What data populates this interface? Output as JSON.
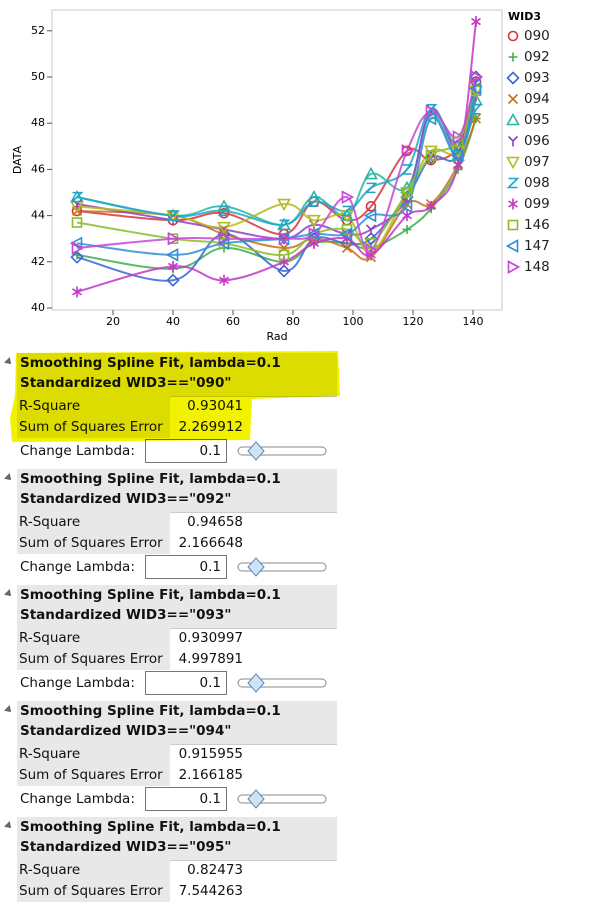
{
  "chart_data": {
    "type": "scatter",
    "x_label": "Rad",
    "y_label": "DATA",
    "xlim": [
      0,
      150
    ],
    "xticks": [
      20,
      40,
      60,
      80,
      100,
      120,
      140
    ],
    "ylim": [
      40,
      52.9
    ],
    "yticks": [
      40,
      42,
      44,
      46,
      48,
      50,
      52
    ],
    "legend_title": "WID3",
    "legend": "right",
    "x": [
      8,
      40,
      57,
      77,
      87,
      98,
      106,
      118,
      126,
      135,
      141
    ],
    "series": [
      {
        "name": "090",
        "color": "#d4373c",
        "marker": "circle",
        "values": [
          44.2,
          43.8,
          44.1,
          43.2,
          44.6,
          43.8,
          44.4,
          46.8,
          46.4,
          47.0,
          49.8
        ]
      },
      {
        "name": "092",
        "color": "#3cb04a",
        "marker": "plus",
        "values": [
          42.3,
          41.7,
          42.6,
          42.0,
          42.8,
          42.8,
          42.6,
          43.4,
          44.3,
          46.0,
          48.2
        ]
      },
      {
        "name": "093",
        "color": "#3a66d4",
        "marker": "diamond",
        "values": [
          42.2,
          41.2,
          43.2,
          41.6,
          43.0,
          42.8,
          43.0,
          44.8,
          46.5,
          46.6,
          50.0
        ]
      },
      {
        "name": "094",
        "color": "#c8711f",
        "marker": "x",
        "values": [
          44.2,
          44.0,
          43.2,
          42.6,
          43.0,
          42.6,
          42.2,
          44.5,
          44.5,
          46.2,
          48.2
        ]
      },
      {
        "name": "095",
        "color": "#2bb5a4",
        "marker": "triangle-up",
        "values": [
          44.8,
          44.0,
          44.4,
          43.6,
          44.8,
          44.0,
          45.8,
          45.2,
          48.4,
          46.6,
          49.0
        ]
      },
      {
        "name": "096",
        "color": "#8e3fc9",
        "marker": "y",
        "values": [
          44.5,
          43.8,
          43.4,
          43.0,
          43.6,
          43.2,
          43.4,
          44.8,
          48.6,
          46.8,
          49.2
        ]
      },
      {
        "name": "097",
        "color": "#b8b81f",
        "marker": "triangle-down",
        "values": [
          44.4,
          44.0,
          43.5,
          44.5,
          43.8,
          44.0,
          42.4,
          45.0,
          46.8,
          46.8,
          49.4
        ]
      },
      {
        "name": "098",
        "color": "#21a6c9",
        "marker": "z",
        "values": [
          44.8,
          44.0,
          44.2,
          43.6,
          44.6,
          44.2,
          45.2,
          46.0,
          48.6,
          47.0,
          48.6
        ]
      },
      {
        "name": "099",
        "color": "#c535c8",
        "marker": "asterisk",
        "values": [
          40.7,
          41.8,
          41.2,
          42.0,
          42.8,
          43.0,
          42.3,
          44.0,
          44.4,
          46.2,
          52.4
        ]
      },
      {
        "name": "146",
        "color": "#8bbd2a",
        "marker": "square",
        "values": [
          43.7,
          43.0,
          42.8,
          42.3,
          43.2,
          43.4,
          42.8,
          45.0,
          46.6,
          47.2,
          49.4
        ]
      },
      {
        "name": "147",
        "color": "#2e8fd4",
        "marker": "triangle-left",
        "values": [
          42.8,
          42.3,
          42.8,
          43.0,
          43.2,
          43.2,
          44.0,
          44.4,
          48.2,
          46.6,
          49.5
        ]
      },
      {
        "name": "148",
        "color": "#c845d8",
        "marker": "triangle-right",
        "values": [
          42.6,
          43.0,
          43.0,
          43.0,
          43.2,
          44.8,
          42.5,
          46.8,
          48.5,
          47.4,
          50.0
        ]
      }
    ]
  },
  "reports": [
    {
      "title": "Smoothing Spline Fit, lambda=0.1",
      "subtitle": "Standardized WID3==\"090\"",
      "highlighted": true,
      "rows": [
        {
          "label": "R-Square",
          "value": 0.93041
        },
        {
          "label": "Sum of Squares Error",
          "value": 2.269912
        }
      ],
      "lambda_label": "Change Lambda:",
      "lambda": 0.1
    },
    {
      "title": "Smoothing Spline Fit, lambda=0.1",
      "subtitle": "Standardized WID3==\"092\"",
      "rows": [
        {
          "label": "R-Square",
          "value": 0.94658
        },
        {
          "label": "Sum of Squares Error",
          "value": 2.166648
        }
      ],
      "lambda_label": "Change Lambda:",
      "lambda": 0.1
    },
    {
      "title": "Smoothing Spline Fit, lambda=0.1",
      "subtitle": "Standardized WID3==\"093\"",
      "rows": [
        {
          "label": "R-Square",
          "value": 0.930997
        },
        {
          "label": "Sum of Squares Error",
          "value": 4.997891
        }
      ],
      "lambda_label": "Change Lambda:",
      "lambda": 0.1
    },
    {
      "title": "Smoothing Spline Fit, lambda=0.1",
      "subtitle": "Standardized WID3==\"094\"",
      "rows": [
        {
          "label": "R-Square",
          "value": 0.915955
        },
        {
          "label": "Sum of Squares Error",
          "value": 2.166185
        }
      ],
      "lambda_label": "Change Lambda:",
      "lambda": 0.1
    },
    {
      "title": "Smoothing Spline Fit, lambda=0.1",
      "subtitle": "Standardized WID3==\"095\"",
      "rows": [
        {
          "label": "R-Square",
          "value": 0.82473
        },
        {
          "label": "Sum of Squares Error",
          "value": 7.544263
        }
      ]
    }
  ]
}
